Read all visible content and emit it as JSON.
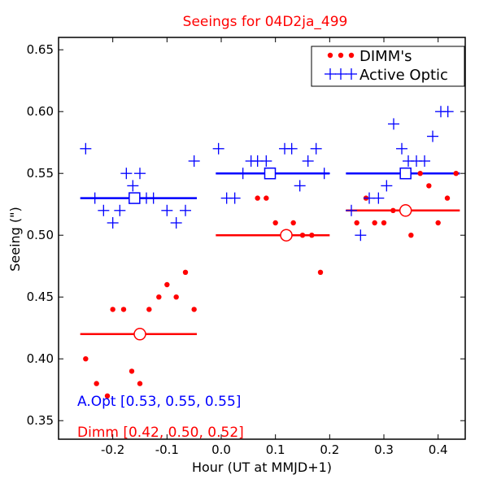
{
  "chart_data": {
    "type": "scatter",
    "title": "Seeings for 04D2ja_499",
    "xlabel": "Hour (UT at MMJD+1)",
    "ylabel": "Seeing (\")",
    "xlim": [
      -0.3,
      0.45
    ],
    "ylim": [
      0.335,
      0.66
    ],
    "x_ticks": [
      -0.2,
      -0.1,
      0.0,
      0.1,
      0.2,
      0.3,
      0.4
    ],
    "x_tick_labels": [
      "-0.2",
      "-0.1",
      "0.0",
      "0.1",
      "0.2",
      "0.3",
      "0.4"
    ],
    "y_ticks": [
      0.35,
      0.4,
      0.45,
      0.5,
      0.55,
      0.6,
      0.65
    ],
    "y_tick_labels": [
      "0.35",
      "0.40",
      "0.45",
      "0.50",
      "0.55",
      "0.60",
      "0.65"
    ],
    "legend": {
      "position": "top-right",
      "entries": [
        {
          "label": "DIMM's",
          "marker": "dot",
          "color": "#ff0000"
        },
        {
          "label": "Active Optic",
          "marker": "plus",
          "color": "#0000ff"
        }
      ]
    },
    "series": [
      {
        "name": "DIMM's",
        "marker": "dot",
        "color": "#ff0000",
        "points": [
          {
            "x": -0.25,
            "y": 0.4
          },
          {
            "x": -0.23,
            "y": 0.38
          },
          {
            "x": -0.21,
            "y": 0.37
          },
          {
            "x": -0.2,
            "y": 0.44
          },
          {
            "x": -0.18,
            "y": 0.44
          },
          {
            "x": -0.165,
            "y": 0.39
          },
          {
            "x": -0.15,
            "y": 0.38
          },
          {
            "x": -0.133,
            "y": 0.44
          },
          {
            "x": -0.115,
            "y": 0.45
          },
          {
            "x": -0.1,
            "y": 0.46
          },
          {
            "x": -0.083,
            "y": 0.45
          },
          {
            "x": -0.066,
            "y": 0.47
          },
          {
            "x": -0.05,
            "y": 0.44
          },
          {
            "x": 0.067,
            "y": 0.53
          },
          {
            "x": 0.083,
            "y": 0.53
          },
          {
            "x": 0.1,
            "y": 0.51
          },
          {
            "x": 0.133,
            "y": 0.51
          },
          {
            "x": 0.15,
            "y": 0.5
          },
          {
            "x": 0.167,
            "y": 0.5
          },
          {
            "x": 0.183,
            "y": 0.47
          },
          {
            "x": 0.25,
            "y": 0.51
          },
          {
            "x": 0.267,
            "y": 0.53
          },
          {
            "x": 0.283,
            "y": 0.51
          },
          {
            "x": 0.3,
            "y": 0.51
          },
          {
            "x": 0.317,
            "y": 0.52
          },
          {
            "x": 0.333,
            "y": 0.52
          },
          {
            "x": 0.35,
            "y": 0.5
          },
          {
            "x": 0.367,
            "y": 0.55
          },
          {
            "x": 0.383,
            "y": 0.54
          },
          {
            "x": 0.4,
            "y": 0.51
          },
          {
            "x": 0.417,
            "y": 0.53
          },
          {
            "x": 0.433,
            "y": 0.55
          }
        ]
      },
      {
        "name": "Active Optic",
        "marker": "plus",
        "color": "#0000ff",
        "points": [
          {
            "x": -0.25,
            "y": 0.57
          },
          {
            "x": -0.233,
            "y": 0.53
          },
          {
            "x": -0.217,
            "y": 0.52
          },
          {
            "x": -0.2,
            "y": 0.51
          },
          {
            "x": -0.187,
            "y": 0.52
          },
          {
            "x": -0.175,
            "y": 0.55
          },
          {
            "x": -0.163,
            "y": 0.54
          },
          {
            "x": -0.15,
            "y": 0.55
          },
          {
            "x": -0.138,
            "y": 0.53
          },
          {
            "x": -0.125,
            "y": 0.53
          },
          {
            "x": -0.1,
            "y": 0.52
          },
          {
            "x": -0.083,
            "y": 0.51
          },
          {
            "x": -0.066,
            "y": 0.52
          },
          {
            "x": -0.05,
            "y": 0.56
          },
          {
            "x": -0.005,
            "y": 0.57
          },
          {
            "x": 0.01,
            "y": 0.53
          },
          {
            "x": 0.025,
            "y": 0.53
          },
          {
            "x": 0.04,
            "y": 0.55
          },
          {
            "x": 0.055,
            "y": 0.56
          },
          {
            "x": 0.067,
            "y": 0.56
          },
          {
            "x": 0.083,
            "y": 0.56
          },
          {
            "x": 0.117,
            "y": 0.57
          },
          {
            "x": 0.13,
            "y": 0.57
          },
          {
            "x": 0.145,
            "y": 0.54
          },
          {
            "x": 0.16,
            "y": 0.56
          },
          {
            "x": 0.175,
            "y": 0.57
          },
          {
            "x": 0.19,
            "y": 0.55
          },
          {
            "x": 0.24,
            "y": 0.52
          },
          {
            "x": 0.257,
            "y": 0.5
          },
          {
            "x": 0.273,
            "y": 0.53
          },
          {
            "x": 0.29,
            "y": 0.53
          },
          {
            "x": 0.305,
            "y": 0.54
          },
          {
            "x": 0.318,
            "y": 0.59
          },
          {
            "x": 0.333,
            "y": 0.57
          },
          {
            "x": 0.345,
            "y": 0.56
          },
          {
            "x": 0.36,
            "y": 0.56
          },
          {
            "x": 0.375,
            "y": 0.56
          },
          {
            "x": 0.39,
            "y": 0.58
          },
          {
            "x": 0.405,
            "y": 0.6
          },
          {
            "x": 0.418,
            "y": 0.6
          }
        ]
      }
    ],
    "median_bins": [
      {
        "series": "Active Optic",
        "marker": "square",
        "color": "#0000ff",
        "x_start": -0.26,
        "x_end": -0.045,
        "x_marker": -0.16,
        "value": 0.53
      },
      {
        "series": "Active Optic",
        "marker": "square",
        "color": "#0000ff",
        "x_start": -0.01,
        "x_end": 0.2,
        "x_marker": 0.09,
        "value": 0.55
      },
      {
        "series": "Active Optic",
        "marker": "square",
        "color": "#0000ff",
        "x_start": 0.23,
        "x_end": 0.44,
        "x_marker": 0.34,
        "value": 0.55
      },
      {
        "series": "DIMM's",
        "marker": "circle",
        "color": "#ff0000",
        "x_start": -0.26,
        "x_end": -0.045,
        "x_marker": -0.15,
        "value": 0.42
      },
      {
        "series": "DIMM's",
        "marker": "circle",
        "color": "#ff0000",
        "x_start": -0.01,
        "x_end": 0.2,
        "x_marker": 0.12,
        "value": 0.5
      },
      {
        "series": "DIMM's",
        "marker": "circle",
        "color": "#ff0000",
        "x_start": 0.23,
        "x_end": 0.44,
        "x_marker": 0.34,
        "value": 0.52
      }
    ],
    "annotations": [
      {
        "text": "A.Opt [0.53, 0.55, 0.55]",
        "color": "#0000ff"
      },
      {
        "text": "Dimm [0.42, 0.50, 0.52]",
        "color": "#ff0000"
      }
    ]
  }
}
